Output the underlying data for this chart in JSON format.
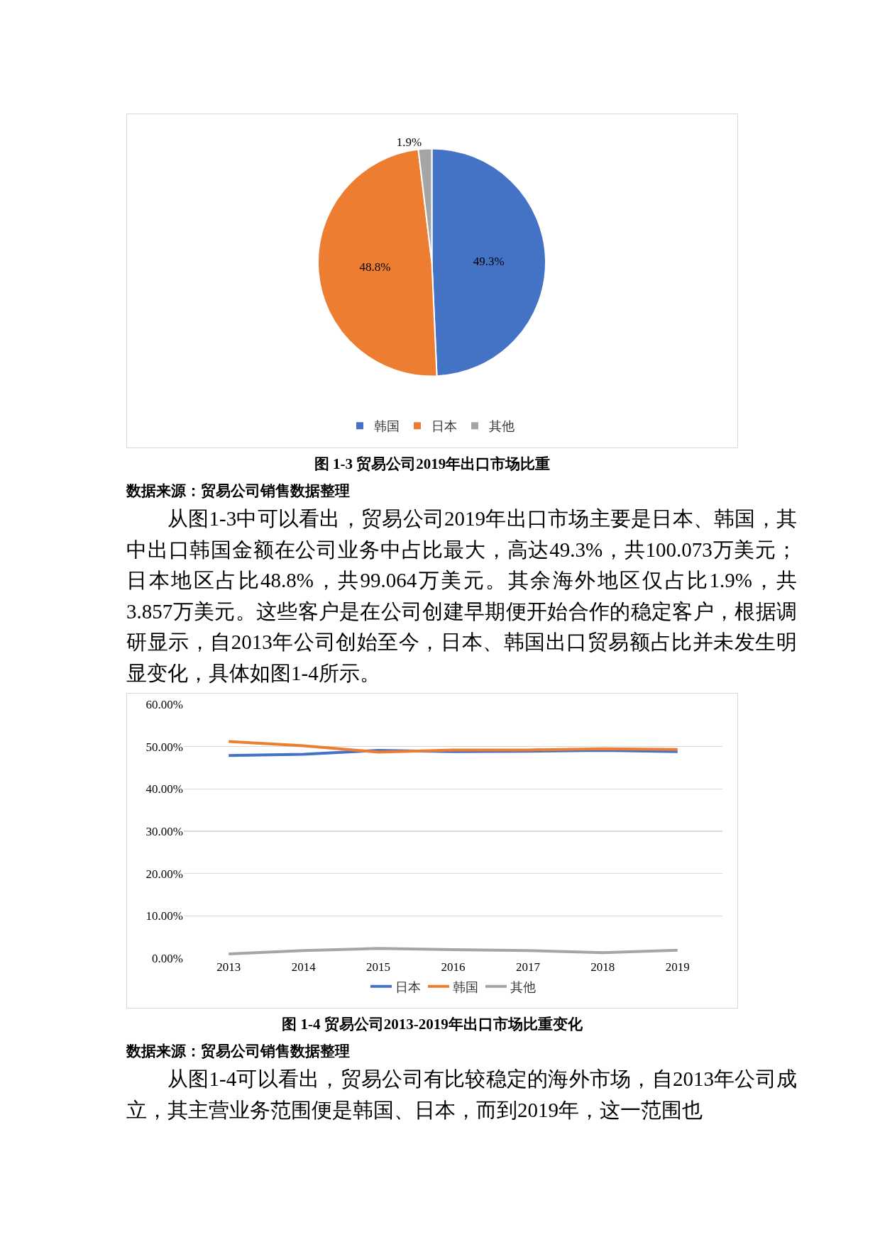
{
  "chart_data": [
    {
      "type": "pie",
      "title": "图 1-3 贸易公司2019年出口市场比重",
      "categories": [
        "韩国",
        "日本",
        "其他"
      ],
      "values": [
        49.3,
        48.8,
        1.9
      ],
      "colors": [
        "#4472c4",
        "#ed7d31",
        "#a5a5a5"
      ],
      "value_labels": [
        "49.3%",
        "48.8%",
        "1.9%"
      ],
      "legend": "bottom",
      "annotations": [
        "数据来源：贸易公司销售数据整理",
        "从图1-3中可以看出，贸易公司2019年出口市场主要是日本、韩国，其中出口韩国金额在公司业务中占比最大，高达49.3%，共100.073万美元；日本地区占比48.8%，共99.064万美元。其余海外地区仅占比1.9%，共3.857万美元。这些客户是在公司创建早期便开始合作的稳定客户，根据调研显示，自2013年公司创始至今，日本、韩国出口贸易额占比并未发生明显变化，具体如图1-4所示。"
      ]
    },
    {
      "type": "line",
      "title": "图 1-4 贸易公司2013-2019年出口市场比重变化",
      "categories": [
        "2013",
        "2014",
        "2015",
        "2016",
        "2017",
        "2018",
        "2019"
      ],
      "series": [
        {
          "name": "日本",
          "color": "#4472c4",
          "values": [
            47.9,
            48.2,
            49.1,
            48.8,
            48.9,
            49.1,
            48.8
          ]
        },
        {
          "name": "韩国",
          "color": "#ed7d31",
          "values": [
            51.2,
            50.2,
            48.7,
            49.2,
            49.2,
            49.5,
            49.3
          ]
        },
        {
          "name": "其他",
          "color": "#a5a5a5",
          "values": [
            1.0,
            1.8,
            2.3,
            2.0,
            1.8,
            1.3,
            1.9
          ]
        }
      ],
      "ylim": [
        0,
        60
      ],
      "yticks": [
        {
          "value": 0,
          "label": "0.00%"
        },
        {
          "value": 10,
          "label": "10.00%"
        },
        {
          "value": 20,
          "label": "20.00%"
        },
        {
          "value": 30,
          "label": "30.00%"
        },
        {
          "value": 40,
          "label": "40.00%"
        },
        {
          "value": 50,
          "label": "50.00%"
        },
        {
          "value": 60,
          "label": "60.00%"
        }
      ],
      "grid": "y",
      "legend": "bottom",
      "marker": "none",
      "line_style": "solid",
      "annotations": [
        "数据来源：贸易公司销售数据整理",
        "从图1-4可以看出，贸易公司有比较稳定的海外市场，自2013年公司成立，其主营业务范围便是韩国、日本，而到2019年，这一范围也"
      ]
    }
  ]
}
